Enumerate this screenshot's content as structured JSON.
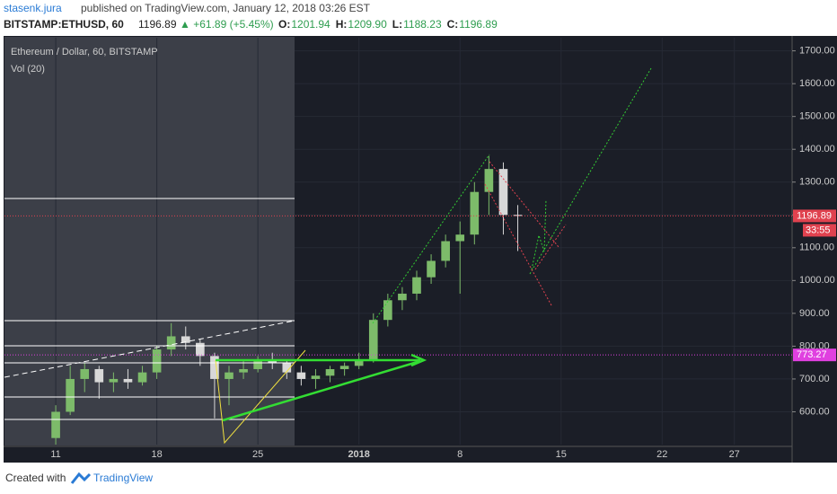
{
  "header": {
    "author": "stasenk.jura",
    "published": "published on TradingView.com, January 12, 2018 03:26 EST",
    "symbol": "BITSTAMP:ETHUSD, 60",
    "price": "1196.89",
    "change": "▲ +61.89 (+5.45%)",
    "ohlc": [
      {
        "label": "O:",
        "value": "1201.94"
      },
      {
        "label": "H:",
        "value": "1209.90"
      },
      {
        "label": "L:",
        "value": "1188.23"
      },
      {
        "label": "C:",
        "value": "1196.89"
      }
    ]
  },
  "chart_data": {
    "type": "candlestick",
    "title": "Ethereum / Dollar, 60, BITSTAMP",
    "indicator": "Vol (20)",
    "x": [
      0,
      1,
      2,
      3,
      4,
      5,
      6,
      7,
      8,
      9,
      10,
      11,
      12,
      13,
      14,
      15,
      16,
      17,
      18,
      19,
      20,
      21,
      22,
      23,
      24,
      25,
      26,
      27,
      28,
      29,
      30,
      31,
      32
    ],
    "open": [
      520,
      600,
      700,
      730,
      690,
      700,
      690,
      720,
      790,
      830,
      810,
      770,
      700,
      720,
      730,
      760,
      750,
      720,
      700,
      710,
      730,
      740,
      760,
      880,
      940,
      960,
      1010,
      1060,
      1120,
      1140,
      1270,
      1340,
      1200
    ],
    "high": [
      620,
      740,
      750,
      740,
      720,
      730,
      740,
      800,
      870,
      860,
      820,
      780,
      740,
      760,
      770,
      780,
      760,
      740,
      730,
      740,
      750,
      780,
      900,
      960,
      980,
      1030,
      1080,
      1140,
      1180,
      1300,
      1380,
      1360,
      1230
    ],
    "low": [
      500,
      590,
      660,
      640,
      660,
      670,
      680,
      700,
      770,
      790,
      740,
      580,
      620,
      700,
      720,
      730,
      700,
      680,
      670,
      690,
      710,
      730,
      750,
      860,
      910,
      940,
      990,
      1040,
      960,
      1110,
      1200,
      1140,
      1090
    ],
    "close": [
      600,
      700,
      730,
      690,
      700,
      690,
      720,
      790,
      830,
      810,
      770,
      700,
      720,
      730,
      760,
      750,
      720,
      700,
      710,
      730,
      740,
      760,
      880,
      940,
      960,
      1010,
      1060,
      1120,
      1140,
      1270,
      1340,
      1200,
      1196.89
    ],
    "up_color": "#7dbb6a",
    "down_color": "#d8d8d8",
    "xlim": [
      -3.55,
      51
    ],
    "ylim": [
      500,
      1740
    ],
    "xticks": [
      {
        "value": 0,
        "label": "11"
      },
      {
        "value": 7,
        "label": "18"
      },
      {
        "value": 14,
        "label": "25"
      },
      {
        "value": 21,
        "label": "2018"
      },
      {
        "value": 28,
        "label": "8"
      },
      {
        "value": 35,
        "label": "15"
      },
      {
        "value": 42,
        "label": "22"
      },
      {
        "value": 47,
        "label": "27"
      }
    ],
    "yticks": [
      {
        "value": 600,
        "label": "600.00"
      },
      {
        "value": 700,
        "label": "700.00"
      },
      {
        "value": 800,
        "label": "800.00"
      },
      {
        "value": 900,
        "label": "900.00"
      },
      {
        "value": 1000,
        "label": "1000.00"
      },
      {
        "value": 1100,
        "label": "1100.00"
      },
      {
        "value": 1200,
        "label": "1200.00"
      },
      {
        "value": 1300,
        "label": "1300.00"
      },
      {
        "value": 1400,
        "label": "1400.00"
      },
      {
        "value": 1500,
        "label": "1500.00"
      },
      {
        "value": 1600,
        "label": "1600.00"
      },
      {
        "value": 1700,
        "label": "1700.00"
      }
    ],
    "last_price": {
      "value": 1196.89,
      "label": "1196.89",
      "color": "#e0424f"
    },
    "countdown": "33:55",
    "level": {
      "value": 773.27,
      "label": "773.27",
      "color": "#e040e0"
    }
  },
  "footer": {
    "created": "Created with",
    "brand": "TradingView"
  }
}
